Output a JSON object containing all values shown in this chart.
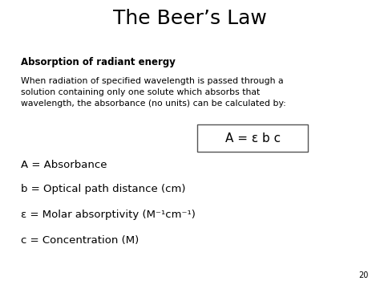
{
  "title": "The Beer’s Law",
  "subtitle_bold": "Absorption of radiant energy",
  "body_text": "When radiation of specified wavelength is passed through a\nsolution containing only one solute which absorbs that\nwavelength, the absorbance (no units) can be calculated by:",
  "formula": "A = ε b c",
  "legend_lines": [
    "A = Absorbance",
    "b = Optical path distance (cm)",
    "ε = Molar absorptivity (M⁻¹cm⁻¹)",
    "c = Concentration (M)"
  ],
  "page_number": "20",
  "bg_color": "#ffffff",
  "text_color": "#000000",
  "title_fontsize": 18,
  "subtitle_fontsize": 8.5,
  "body_fontsize": 7.8,
  "formula_fontsize": 11,
  "legend_fontsize": 9.5,
  "page_fontsize": 7
}
